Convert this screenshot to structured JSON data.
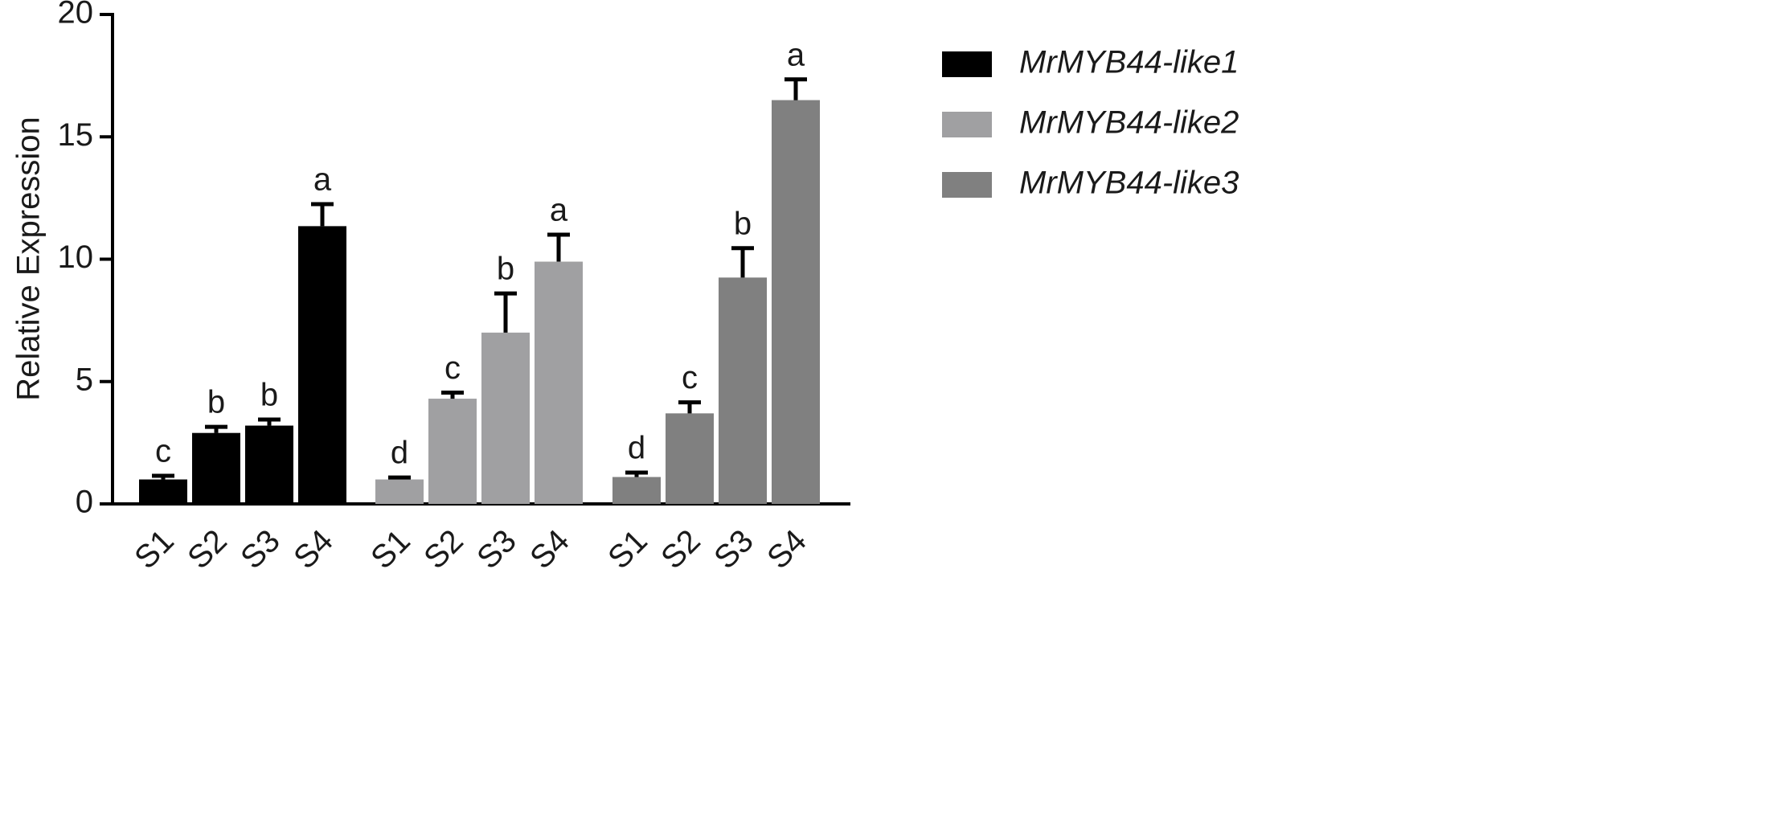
{
  "chart_data": {
    "type": "grouped-bar",
    "y_label": "Relative Expression",
    "categories": [
      "S1",
      "S2",
      "S3",
      "S4"
    ],
    "series": [
      {
        "name": "MrMYB44-like1",
        "color": "#000000",
        "values": [
          1.0,
          2.9,
          3.2,
          11.35
        ],
        "errors": [
          0.15,
          0.25,
          0.25,
          0.9
        ],
        "letters": [
          "c",
          "b",
          "b",
          "a"
        ]
      },
      {
        "name": "MrMYB44-like2",
        "color": "#a0a0a2",
        "values": [
          1.0,
          4.3,
          7.0,
          9.9
        ],
        "errors": [
          0.08,
          0.25,
          1.6,
          1.1
        ],
        "letters": [
          "d",
          "c",
          "b",
          "a"
        ]
      },
      {
        "name": "MrMYB44-like3",
        "color": "#808080",
        "values": [
          1.1,
          3.7,
          9.25,
          16.5
        ],
        "errors": [
          0.18,
          0.45,
          1.2,
          0.85
        ],
        "letters": [
          "d",
          "c",
          "b",
          "a"
        ]
      }
    ],
    "ylim": [
      0,
      20
    ],
    "yticks": [
      0,
      5,
      10,
      15,
      20
    ],
    "legend": "right"
  }
}
